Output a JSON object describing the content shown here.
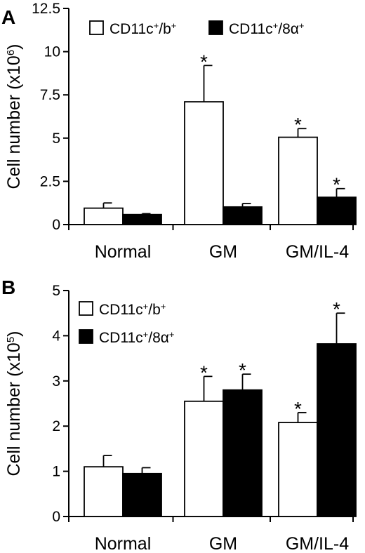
{
  "colors": {
    "series_1": "#ffffff",
    "series_2": "#000000",
    "axes": "#000000"
  },
  "chart_data": [
    {
      "panel_label": "A",
      "type": "bar",
      "ylabel_main": "Cell number (x10",
      "ylabel_exp": "6",
      "ylabel_close": ")",
      "xlabel": "",
      "ylim": [
        0,
        12.5
      ],
      "yticks": [
        0,
        2.5,
        5,
        7.5,
        10,
        12.5
      ],
      "ytick_labels": [
        "0",
        "2.5",
        "5",
        "7.5",
        "10",
        "12.5"
      ],
      "categories": [
        "Normal",
        "GM",
        "GM/IL-4"
      ],
      "legend_position": "top",
      "series": [
        {
          "name": "CD11c⁺/b⁺",
          "legend_base": "CD11c",
          "legend_sup1": "+",
          "legend_mid": "/b",
          "legend_sup2": "+",
          "color": "#ffffff",
          "values": [
            0.95,
            7.1,
            5.05
          ],
          "errors": [
            0.3,
            2.1,
            0.5
          ],
          "significance": [
            "",
            "*",
            "*"
          ]
        },
        {
          "name": "CD11c⁺/8α⁺",
          "legend_base": "CD11c",
          "legend_sup1": "+",
          "legend_mid": "/8α",
          "legend_sup2": "+",
          "color": "#000000",
          "values": [
            0.58,
            1.02,
            1.58
          ],
          "errors": [
            0.05,
            0.2,
            0.5
          ],
          "significance": [
            "",
            "",
            "*"
          ]
        }
      ]
    },
    {
      "panel_label": "B",
      "type": "bar",
      "ylabel_main": "Cell number (x10",
      "ylabel_exp": "5",
      "ylabel_close": ")",
      "xlabel": "",
      "ylim": [
        0,
        5
      ],
      "yticks": [
        0,
        1,
        2,
        3,
        4,
        5
      ],
      "ytick_labels": [
        "0",
        "1",
        "2",
        "3",
        "4",
        "5"
      ],
      "categories": [
        "Normal",
        "GM",
        "GM/IL-4"
      ],
      "legend_position": "top-left",
      "series": [
        {
          "name": "CD11c⁺/b⁺",
          "legend_base": "CD11c",
          "legend_sup1": "+",
          "legend_mid": "/b",
          "legend_sup2": "+",
          "color": "#ffffff",
          "values": [
            1.1,
            2.55,
            2.08
          ],
          "errors": [
            0.25,
            0.55,
            0.22
          ],
          "significance": [
            "",
            "*",
            "*"
          ]
        },
        {
          "name": "CD11c⁺/8α⁺",
          "legend_base": "CD11c",
          "legend_sup1": "+",
          "legend_mid": "/8α",
          "legend_sup2": "+",
          "color": "#000000",
          "values": [
            0.95,
            2.8,
            3.82
          ],
          "errors": [
            0.13,
            0.35,
            0.68
          ],
          "significance": [
            "",
            "*",
            "*"
          ]
        }
      ]
    }
  ]
}
